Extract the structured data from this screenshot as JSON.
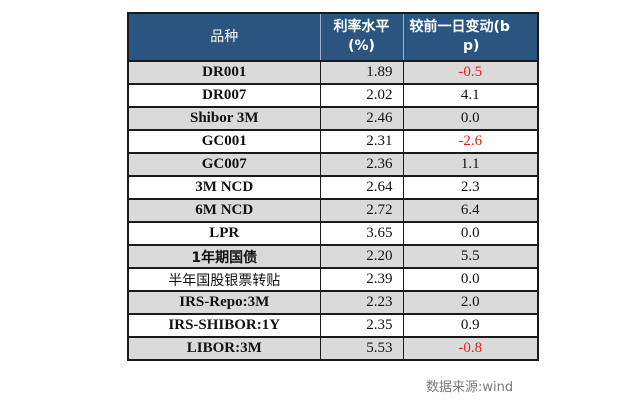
{
  "table": {
    "headers": {
      "name": "品种",
      "rate_line1": "利率水平",
      "rate_line2": "(%)",
      "change_line1": "较前一日变动(b",
      "change_line2": "p)"
    },
    "rows": [
      {
        "name": "DR001",
        "rate": "1.89",
        "change": "-0.5",
        "negative": true,
        "shaded": true,
        "cjk": false,
        "bold": true
      },
      {
        "name": "DR007",
        "rate": "2.02",
        "change": "4.1",
        "negative": false,
        "shaded": false,
        "cjk": false,
        "bold": true
      },
      {
        "name": "Shibor 3M",
        "rate": "2.46",
        "change": "0.0",
        "negative": false,
        "shaded": true,
        "cjk": false,
        "bold": true
      },
      {
        "name": "GC001",
        "rate": "2.31",
        "change": "-2.6",
        "negative": true,
        "shaded": false,
        "cjk": false,
        "bold": true
      },
      {
        "name": "GC007",
        "rate": "2.36",
        "change": "1.1",
        "negative": false,
        "shaded": true,
        "cjk": false,
        "bold": true
      },
      {
        "name": "3M NCD",
        "rate": "2.64",
        "change": "2.3",
        "negative": false,
        "shaded": false,
        "cjk": false,
        "bold": true
      },
      {
        "name": "6M NCD",
        "rate": "2.72",
        "change": "6.4",
        "negative": false,
        "shaded": true,
        "cjk": false,
        "bold": true
      },
      {
        "name": "LPR",
        "rate": "3.65",
        "change": "0.0",
        "negative": false,
        "shaded": false,
        "cjk": false,
        "bold": true
      },
      {
        "name": "1年期国债",
        "rate": "2.20",
        "change": "5.5",
        "negative": false,
        "shaded": true,
        "cjk": true,
        "bold": true
      },
      {
        "name": "半年国股银票转贴",
        "rate": "2.39",
        "change": "0.0",
        "negative": false,
        "shaded": false,
        "cjk": true,
        "bold": false
      },
      {
        "name": "IRS-Repo:3M",
        "rate": "2.23",
        "change": "2.0",
        "negative": false,
        "shaded": true,
        "cjk": false,
        "bold": true
      },
      {
        "name": "IRS-SHIBOR:1Y",
        "rate": "2.35",
        "change": "0.9",
        "negative": false,
        "shaded": false,
        "cjk": false,
        "bold": true
      },
      {
        "name": "LIBOR:3M",
        "rate": "5.53",
        "change": "-0.8",
        "negative": true,
        "shaded": true,
        "cjk": false,
        "bold": true
      }
    ]
  },
  "colors": {
    "header_bg": "#2a5580",
    "shaded_row_bg": "#dadada",
    "negative_text": "#e0201e",
    "source_text": "#7a7a7a"
  },
  "footer": {
    "source": "数据来源:wind"
  }
}
